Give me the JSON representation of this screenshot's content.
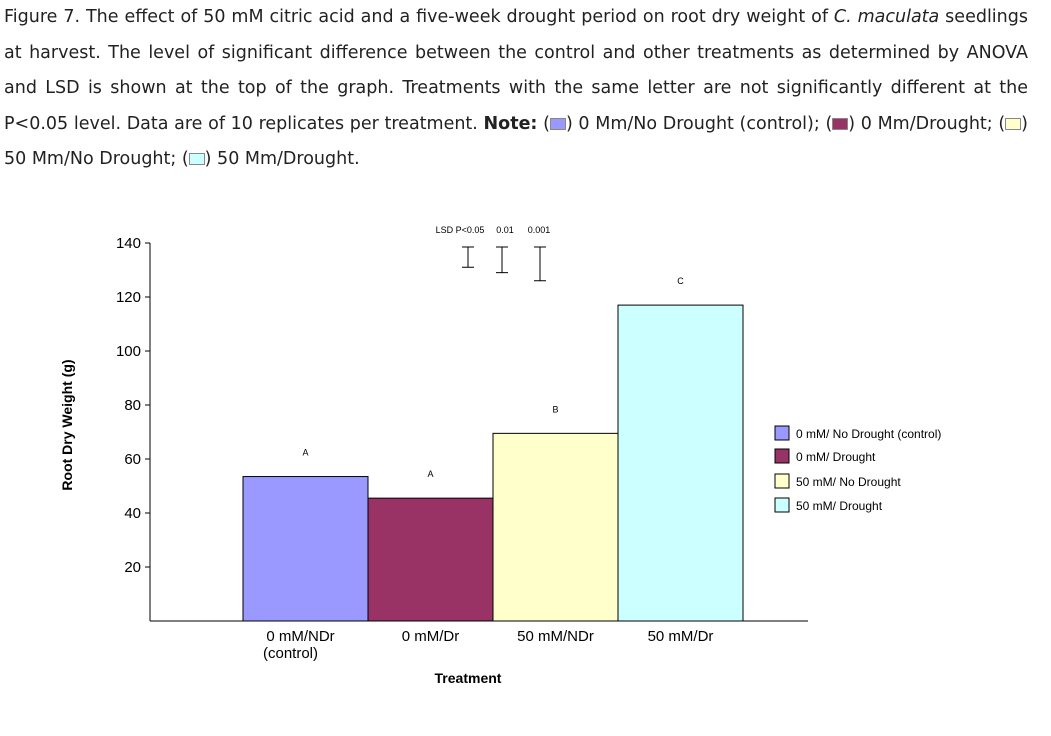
{
  "caption": {
    "figure_label": "Figure 7",
    "part1": ". The effect of 50 mM citric acid and a five-week drought period on root dry weight of ",
    "species": "C. maculata",
    "part2": " seedlings at harvest. The level of significant difference between the control and other treatments as determined by ANOVA and LSD is shown at the top of the graph. Treatments with the same letter are not significantly different at the P<0.05 level. Data are of 10 replicates per treatment. ",
    "note_label": "Note:",
    "open1": " (",
    "item1": ") 0 Mm/No Drought (control); (",
    "item2": ") 0 Mm/Drought; (",
    "item3": ") 50 Mm/No Drought; (",
    "item4": ") 50 Mm/Drought.",
    "swatch_colors": [
      "#9999ff",
      "#993366",
      "#ffffcc",
      "#ccffff"
    ]
  },
  "chart_data": {
    "type": "bar",
    "categories": [
      "0 mM/NDr\n(control)",
      "0 mM/Dr",
      "50 mM/NDr",
      "50 mM/Dr"
    ],
    "values": [
      53.5,
      45.5,
      69.5,
      117
    ],
    "colors": [
      "#9999ff",
      "#993366",
      "#ffffcc",
      "#ccffff"
    ],
    "letters": [
      "A",
      "A",
      "B",
      "C"
    ],
    "legend": [
      "0 mM/ No Drought (control)",
      "0 mM/ Drought",
      "50 mM/ No Drought",
      "50 mM/ Drought"
    ],
    "legend_position": "right",
    "ylabel": "Root Dry Weight (g)",
    "xlabel": "Treatment",
    "yticks": [
      20,
      40,
      60,
      80,
      100,
      120,
      140
    ],
    "ylim": [
      0,
      140
    ],
    "grid": false,
    "lsd": {
      "label": "LSD P<0.05",
      "levels": [
        "0.01",
        "0.001"
      ],
      "values": [
        7.5,
        9.5,
        12.5
      ]
    }
  }
}
